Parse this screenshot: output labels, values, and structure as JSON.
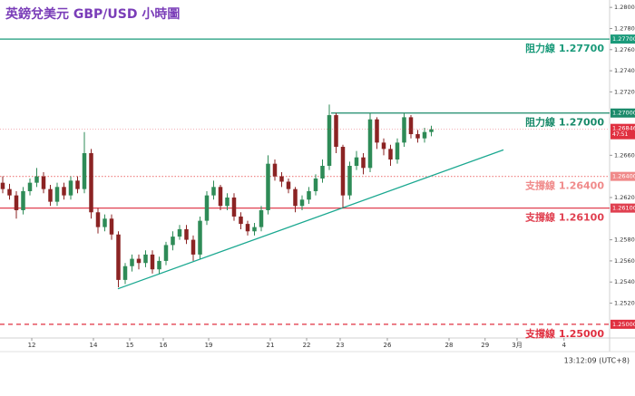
{
  "chart_data": {
    "type": "candlestick",
    "title": "英鎊兌美元 GBP/USD 小時圖",
    "up_color": "#2e8b57",
    "down_color": "#8b2323",
    "x": [
      0,
      1,
      2,
      3,
      4,
      5,
      6,
      7,
      8,
      9,
      10,
      11,
      12,
      13,
      14,
      15,
      16,
      17,
      18,
      19,
      20,
      21,
      22,
      23,
      24,
      25,
      26,
      27,
      28,
      29,
      30,
      31,
      32,
      33,
      34,
      35,
      36,
      37,
      38,
      39,
      40,
      41,
      42,
      43,
      44,
      45,
      46,
      47,
      48,
      49,
      50,
      51,
      52,
      53,
      54,
      55,
      56,
      57,
      58,
      59,
      60,
      61,
      62,
      63
    ],
    "open": [
      1.2634,
      1.2628,
      1.2622,
      1.2608,
      1.2626,
      1.2634,
      1.264,
      1.2628,
      1.2616,
      1.263,
      1.2622,
      1.2636,
      1.2628,
      1.2662,
      1.2606,
      1.2592,
      1.26,
      1.2585,
      1.2542,
      1.2555,
      1.2562,
      1.2558,
      1.2566,
      1.2552,
      1.256,
      1.2575,
      1.2583,
      1.259,
      1.258,
      1.2566,
      1.2598,
      1.2622,
      1.263,
      1.2612,
      1.262,
      1.2602,
      1.2595,
      1.2588,
      1.2592,
      1.2608,
      1.2652,
      1.264,
      1.2635,
      1.2628,
      1.2612,
      1.2618,
      1.2626,
      1.2638,
      1.265,
      1.2698,
      1.2668,
      1.2622,
      1.265,
      1.2658,
      1.2648,
      1.2694,
      1.2672,
      1.2666,
      1.2656,
      1.2672,
      1.2696,
      1.268,
      1.2676,
      1.2682
    ],
    "high": [
      1.264,
      1.2633,
      1.2626,
      1.263,
      1.2638,
      1.2648,
      1.2644,
      1.2632,
      1.2634,
      1.2634,
      1.264,
      1.264,
      1.2682,
      1.2666,
      1.261,
      1.2604,
      1.2604,
      1.2588,
      1.2558,
      1.2566,
      1.2566,
      1.257,
      1.257,
      1.2564,
      1.2578,
      1.2588,
      1.2594,
      1.2594,
      1.2584,
      1.2602,
      1.2626,
      1.2636,
      1.2632,
      1.2624,
      1.2624,
      1.2606,
      1.2598,
      1.2596,
      1.2612,
      1.266,
      1.2656,
      1.2644,
      1.2638,
      1.263,
      1.2622,
      1.263,
      1.2642,
      1.2656,
      1.2708,
      1.27,
      1.267,
      1.2654,
      1.2664,
      1.2662,
      1.27,
      1.2696,
      1.2676,
      1.267,
      1.2676,
      1.27,
      1.2698,
      1.2684,
      1.2686,
      1.2688
    ],
    "low": [
      1.2624,
      1.2618,
      1.26,
      1.2604,
      1.2622,
      1.263,
      1.2624,
      1.2612,
      1.2612,
      1.2618,
      1.2618,
      1.2624,
      1.2624,
      1.26,
      1.2586,
      1.2588,
      1.258,
      1.2535,
      1.2538,
      1.255,
      1.2552,
      1.2554,
      1.2548,
      1.2548,
      1.2556,
      1.257,
      1.258,
      1.2576,
      1.256,
      1.2562,
      1.2594,
      1.2618,
      1.2608,
      1.2608,
      1.2598,
      1.259,
      1.2584,
      1.2584,
      1.2588,
      1.2604,
      1.2636,
      1.263,
      1.2624,
      1.2606,
      1.2608,
      1.2614,
      1.2622,
      1.2634,
      1.2646,
      1.2662,
      1.261,
      1.2618,
      1.2646,
      1.2642,
      1.2644,
      1.2666,
      1.266,
      1.265,
      1.2652,
      1.2668,
      1.2676,
      1.2672,
      1.2672,
      1.2678
    ],
    "close": [
      1.2628,
      1.2622,
      1.2608,
      1.2626,
      1.2634,
      1.264,
      1.2628,
      1.2616,
      1.263,
      1.2622,
      1.2636,
      1.2628,
      1.2662,
      1.2606,
      1.2592,
      1.26,
      1.2585,
      1.2542,
      1.2555,
      1.2562,
      1.2558,
      1.2566,
      1.2552,
      1.256,
      1.2575,
      1.2583,
      1.259,
      1.258,
      1.2566,
      1.2598,
      1.2622,
      1.263,
      1.2612,
      1.262,
      1.2602,
      1.2595,
      1.2588,
      1.2592,
      1.2608,
      1.2652,
      1.264,
      1.2635,
      1.2628,
      1.2612,
      1.2618,
      1.2626,
      1.2638,
      1.265,
      1.2698,
      1.2668,
      1.2622,
      1.265,
      1.2658,
      1.2648,
      1.2694,
      1.2672,
      1.2666,
      1.2656,
      1.2672,
      1.2696,
      1.268,
      1.2676,
      1.2682,
      1.26846
    ],
    "xlim": [
      -0.4,
      89.2
    ],
    "xticks": [
      {
        "value": 4.27,
        "label": "12"
      },
      {
        "value": 13.33,
        "label": "14"
      },
      {
        "value": 18.67,
        "label": "15"
      },
      {
        "value": 23.6,
        "label": "16"
      },
      {
        "value": 30.27,
        "label": "19"
      },
      {
        "value": 39.33,
        "label": "21"
      },
      {
        "value": 44.67,
        "label": "22"
      },
      {
        "value": 49.6,
        "label": "23"
      },
      {
        "value": 56.53,
        "label": "26"
      },
      {
        "value": 65.6,
        "label": "28"
      },
      {
        "value": 70.9,
        "label": "29"
      },
      {
        "value": 75.6,
        "label": "3月"
      },
      {
        "value": 82.5,
        "label": "4"
      }
    ],
    "ylim": [
      1.2487,
      1.2807
    ],
    "yticks": [
      {
        "value": 1.28,
        "label": "1.28000"
      },
      {
        "value": 1.278,
        "label": "1.27800"
      },
      {
        "value": 1.276,
        "label": "1.27600"
      },
      {
        "value": 1.274,
        "label": "1.27400"
      },
      {
        "value": 1.272,
        "label": "1.27200"
      },
      {
        "value": 1.266,
        "label": "1.26600"
      },
      {
        "value": 1.262,
        "label": "1.26200"
      },
      {
        "value": 1.258,
        "label": "1.25800"
      },
      {
        "value": 1.256,
        "label": "1.25600"
      },
      {
        "value": 1.254,
        "label": "1.25400"
      },
      {
        "value": 1.252,
        "label": "1.25200"
      }
    ],
    "levels": [
      {
        "label": "阻力線 1.27700",
        "value": 1.277,
        "axis_label": "1.27700",
        "color": "#1a9a7a",
        "style": "solid",
        "start": -0.4
      },
      {
        "label": "阻力線 1.27000",
        "value": 1.27,
        "axis_label": "1.27000",
        "color": "#1a8a6a",
        "style": "solid",
        "start": 48.27
      },
      {
        "label": "支撐線 1.26400",
        "value": 1.264,
        "axis_label": "1.26400",
        "color": "#f08a8a",
        "style": "dotted",
        "start": -0.4
      },
      {
        "label": "支撐線 1.26100",
        "value": 1.261,
        "axis_label": "1.26100",
        "color": "#e04050",
        "style": "solid",
        "start": -0.4
      },
      {
        "label": "支撐線 1.25000",
        "value": 1.25,
        "axis_label": "1.25000",
        "color": "#e03040",
        "style": "dashed",
        "start": -0.4
      }
    ],
    "trendline": {
      "x": [
        16.93,
        73.6
      ],
      "values": [
        1.25336,
        1.26651
      ],
      "color": "#1aa890"
    },
    "current_price": {
      "value": 1.26846,
      "label": "1.26846",
      "countdown": "47:51",
      "color": "#e03040"
    },
    "clock": "13:12:09 (UTC+8)"
  }
}
